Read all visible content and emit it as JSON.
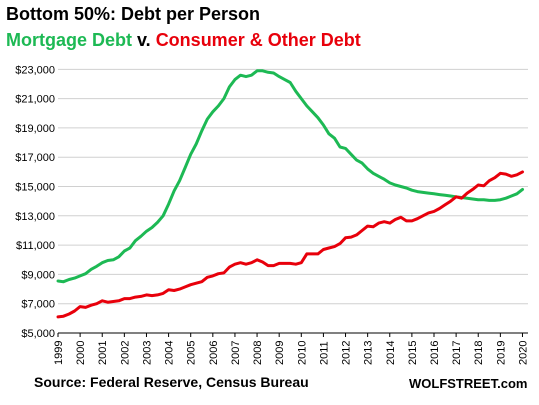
{
  "chart_data": {
    "type": "line",
    "title": "Bottom 50%: Debt per Person",
    "subtitle": {
      "part1": "Mortgage Debt",
      "sep": " v. ",
      "part2": "Consumer & Other Debt"
    },
    "source": "Source: Federal Reserve, Census Bureau",
    "brand": "WOLFSTREET.com",
    "xlim": [
      1999,
      2020.25
    ],
    "ylim": [
      5000,
      23500
    ],
    "x_ticks": [
      "1999",
      "2000",
      "2001",
      "2002",
      "2003",
      "2004",
      "2005",
      "2006",
      "2007",
      "2008",
      "2009",
      "2010",
      "2011",
      "2012",
      "2013",
      "2014",
      "2015",
      "2016",
      "2017",
      "2018",
      "2019",
      "2020"
    ],
    "y_ticks": [
      {
        "value": 5000,
        "label": "$5,000"
      },
      {
        "value": 7000,
        "label": "$7,000"
      },
      {
        "value": 9000,
        "label": "$9,000"
      },
      {
        "value": 11000,
        "label": "$11,000"
      },
      {
        "value": 13000,
        "label": "$13,000"
      },
      {
        "value": 15000,
        "label": "$15,000"
      },
      {
        "value": 17000,
        "label": "$17,000"
      },
      {
        "value": 19000,
        "label": "$19,000"
      },
      {
        "value": 21000,
        "label": "$21,000"
      },
      {
        "value": 23000,
        "label": "$23,000"
      }
    ],
    "grid": "horizontal",
    "series": [
      {
        "name": "Mortgage Debt",
        "color": "#1db954",
        "x": [
          1999.0,
          1999.25,
          1999.5,
          1999.75,
          2000.0,
          2000.25,
          2000.5,
          2000.75,
          2001.0,
          2001.25,
          2001.5,
          2001.75,
          2002.0,
          2002.25,
          2002.5,
          2002.75,
          2003.0,
          2003.25,
          2003.5,
          2003.75,
          2004.0,
          2004.25,
          2004.5,
          2004.75,
          2005.0,
          2005.25,
          2005.5,
          2005.75,
          2006.0,
          2006.25,
          2006.5,
          2006.75,
          2007.0,
          2007.25,
          2007.5,
          2007.75,
          2008.0,
          2008.25,
          2008.5,
          2008.75,
          2009.0,
          2009.25,
          2009.5,
          2009.75,
          2010.0,
          2010.25,
          2010.5,
          2010.75,
          2011.0,
          2011.25,
          2011.5,
          2011.75,
          2012.0,
          2012.25,
          2012.5,
          2012.75,
          2013.0,
          2013.25,
          2013.5,
          2013.75,
          2014.0,
          2014.25,
          2014.5,
          2014.75,
          2015.0,
          2015.25,
          2015.5,
          2015.75,
          2016.0,
          2016.25,
          2016.5,
          2016.75,
          2017.0,
          2017.25,
          2017.5,
          2017.75,
          2018.0,
          2018.25,
          2018.5,
          2018.75,
          2019.0,
          2019.25,
          2019.5,
          2019.75,
          2020.0
        ],
        "values": [
          8550,
          8500,
          8650,
          8750,
          8900,
          9050,
          9350,
          9550,
          9800,
          9950,
          10000,
          10200,
          10600,
          10800,
          11300,
          11600,
          11950,
          12200,
          12550,
          13000,
          13800,
          14700,
          15400,
          16300,
          17200,
          17900,
          18800,
          19600,
          20100,
          20500,
          21000,
          21800,
          22300,
          22600,
          22500,
          22600,
          22900,
          22900,
          22800,
          22750,
          22500,
          22300,
          22100,
          21500,
          21000,
          20500,
          20100,
          19700,
          19200,
          18600,
          18300,
          17700,
          17600,
          17200,
          16800,
          16600,
          16200,
          15900,
          15700,
          15500,
          15250,
          15100,
          15000,
          14900,
          14750,
          14650,
          14600,
          14550,
          14500,
          14450,
          14400,
          14350,
          14300,
          14250,
          14200,
          14150,
          14100,
          14100,
          14050,
          14050,
          14100,
          14200,
          14350,
          14500,
          14800
        ]
      },
      {
        "name": "Consumer & Other Debt",
        "color": "#e8000b",
        "x": [
          1999.0,
          1999.25,
          1999.5,
          1999.75,
          2000.0,
          2000.25,
          2000.5,
          2000.75,
          2001.0,
          2001.25,
          2001.5,
          2001.75,
          2002.0,
          2002.25,
          2002.5,
          2002.75,
          2003.0,
          2003.25,
          2003.5,
          2003.75,
          2004.0,
          2004.25,
          2004.5,
          2004.75,
          2005.0,
          2005.25,
          2005.5,
          2005.75,
          2006.0,
          2006.25,
          2006.5,
          2006.75,
          2007.0,
          2007.25,
          2007.5,
          2007.75,
          2008.0,
          2008.25,
          2008.5,
          2008.75,
          2009.0,
          2009.25,
          2009.5,
          2009.75,
          2010.0,
          2010.25,
          2010.5,
          2010.75,
          2011.0,
          2011.25,
          2011.5,
          2011.75,
          2012.0,
          2012.25,
          2012.5,
          2012.75,
          2013.0,
          2013.25,
          2013.5,
          2013.75,
          2014.0,
          2014.25,
          2014.5,
          2014.75,
          2015.0,
          2015.25,
          2015.5,
          2015.75,
          2016.0,
          2016.25,
          2016.5,
          2016.75,
          2017.0,
          2017.25,
          2017.5,
          2017.75,
          2018.0,
          2018.25,
          2018.5,
          2018.75,
          2019.0,
          2019.25,
          2019.5,
          2019.75,
          2020.0
        ],
        "values": [
          6100,
          6150,
          6300,
          6500,
          6800,
          6750,
          6900,
          7000,
          7200,
          7100,
          7150,
          7200,
          7350,
          7350,
          7450,
          7500,
          7600,
          7550,
          7600,
          7700,
          7950,
          7900,
          8000,
          8150,
          8300,
          8400,
          8500,
          8800,
          8900,
          9050,
          9100,
          9500,
          9700,
          9800,
          9700,
          9800,
          10000,
          9850,
          9600,
          9600,
          9750,
          9750,
          9750,
          9700,
          9800,
          10400,
          10400,
          10400,
          10700,
          10800,
          10900,
          11100,
          11500,
          11550,
          11700,
          12000,
          12300,
          12250,
          12500,
          12600,
          12500,
          12750,
          12900,
          12650,
          12650,
          12800,
          13000,
          13200,
          13300,
          13500,
          13750,
          14000,
          14300,
          14200,
          14550,
          14800,
          15100,
          15050,
          15400,
          15600,
          15900,
          15850,
          15700,
          15800,
          16000
        ]
      }
    ]
  },
  "colors": {
    "mortgage": "#1db954",
    "consumer": "#e8000b",
    "grid": "#d0d0d0",
    "axis": "#000000",
    "text": "#000000"
  }
}
